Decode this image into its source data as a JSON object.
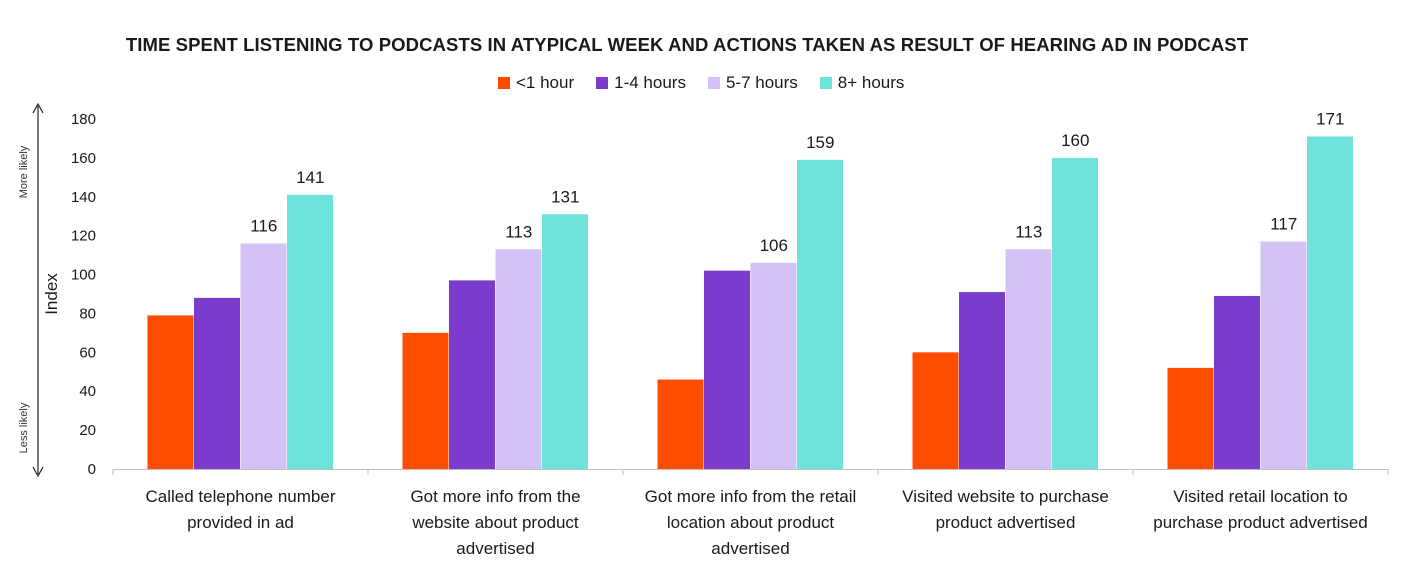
{
  "chart_data": {
    "type": "bar",
    "title": "TIME SPENT LISTENING TO PODCASTS IN  ATYPICAL WEEK AND ACTIONS TAKEN AS RESULT OF HEARING AD IN PODCAST",
    "ylabel": "Index",
    "xlabel": "",
    "ylim": [
      0,
      180
    ],
    "yticks": [
      0,
      20,
      40,
      60,
      80,
      100,
      120,
      140,
      160,
      180
    ],
    "axis_annotations": {
      "top": "More likely",
      "bottom": "Less likely"
    },
    "legend_position": "top-center",
    "categories": [
      [
        "Called telephone number",
        "provided in ad"
      ],
      [
        "Got more info from the",
        "website about product",
        "advertised"
      ],
      [
        "Got more info from the retail",
        "location about product",
        "advertised"
      ],
      [
        "Visited website to purchase",
        "product advertised"
      ],
      [
        "Visited retail location to",
        "purchase product advertised"
      ]
    ],
    "series": [
      {
        "name": "<1 hour",
        "color": "#ff4d00",
        "values": [
          79,
          70,
          46,
          60,
          52
        ],
        "labels": [
          "",
          "",
          "",
          "",
          ""
        ]
      },
      {
        "name": "1-4 hours",
        "color": "#7b3bcc",
        "values": [
          88,
          97,
          102,
          91,
          89
        ],
        "labels": [
          "",
          "",
          "",
          "",
          ""
        ]
      },
      {
        "name": "5-7 hours",
        "color": "#d3c2f5",
        "values": [
          116,
          113,
          106,
          113,
          117
        ],
        "labels": [
          "116",
          "113",
          "106",
          "113",
          "117"
        ]
      },
      {
        "name": "8+ hours",
        "color": "#6ee3dc",
        "values": [
          141,
          131,
          159,
          160,
          171
        ],
        "labels": [
          "141",
          "131",
          "159",
          "160",
          "171"
        ]
      }
    ]
  }
}
